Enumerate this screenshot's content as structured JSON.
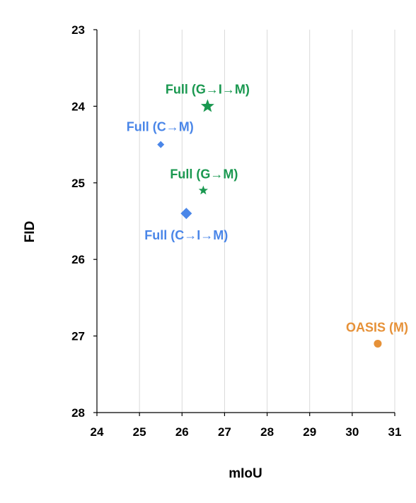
{
  "chart_data": {
    "type": "scatter",
    "title": "",
    "xlabel": "mIoU",
    "ylabel": "FID",
    "xlim": [
      24,
      31
    ],
    "ylim": [
      23,
      28
    ],
    "y_inverted": true,
    "x_ticks": [
      24,
      25,
      26,
      27,
      28,
      29,
      30,
      31
    ],
    "y_ticks": [
      23,
      24,
      25,
      26,
      27,
      28
    ],
    "grid": "vertical",
    "points": [
      {
        "label": "Full (G→I→M)",
        "x": 26.6,
        "y": 24.0,
        "marker": "star",
        "size": "large",
        "color": "#1a9850"
      },
      {
        "label": "Full (C→M)",
        "x": 25.5,
        "y": 24.5,
        "marker": "diamond",
        "size": "small",
        "color": "#4a86e8"
      },
      {
        "label": "Full (G→M)",
        "x": 26.5,
        "y": 25.1,
        "marker": "star",
        "size": "small",
        "color": "#1a9850"
      },
      {
        "label": "Full (C→I→M)",
        "x": 26.1,
        "y": 25.4,
        "marker": "diamond",
        "size": "large",
        "color": "#4a86e8"
      },
      {
        "label": "OASIS (M)",
        "x": 30.6,
        "y": 27.1,
        "marker": "circle",
        "size": "medium",
        "color": "#e69138"
      }
    ]
  }
}
